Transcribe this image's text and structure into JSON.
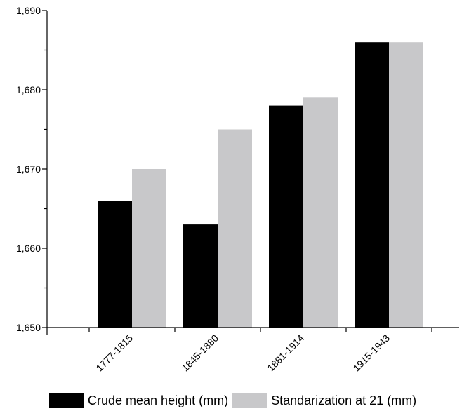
{
  "chart_data": {
    "type": "bar",
    "title": "",
    "xlabel": "",
    "ylabel": "",
    "categories": [
      "1777-1815",
      "1845-1880",
      "1881-1914",
      "1915-1943"
    ],
    "series": [
      {
        "name": "Crude mean height (mm)",
        "values": [
          1666,
          1663,
          1678,
          1686
        ],
        "color": "#000000"
      },
      {
        "name": "Standarization at 21 (mm)",
        "values": [
          1670,
          1675,
          1679,
          1686
        ],
        "color": "#c8c8ca"
      }
    ],
    "ylim": [
      1650,
      1690
    ],
    "yticks": [
      1650,
      1660,
      1670,
      1680,
      1690
    ],
    "ytick_labels": [
      "1,650",
      "1,660",
      "1,670",
      "1,680",
      "1,690"
    ],
    "grid": false,
    "legend_position": "bottom"
  }
}
